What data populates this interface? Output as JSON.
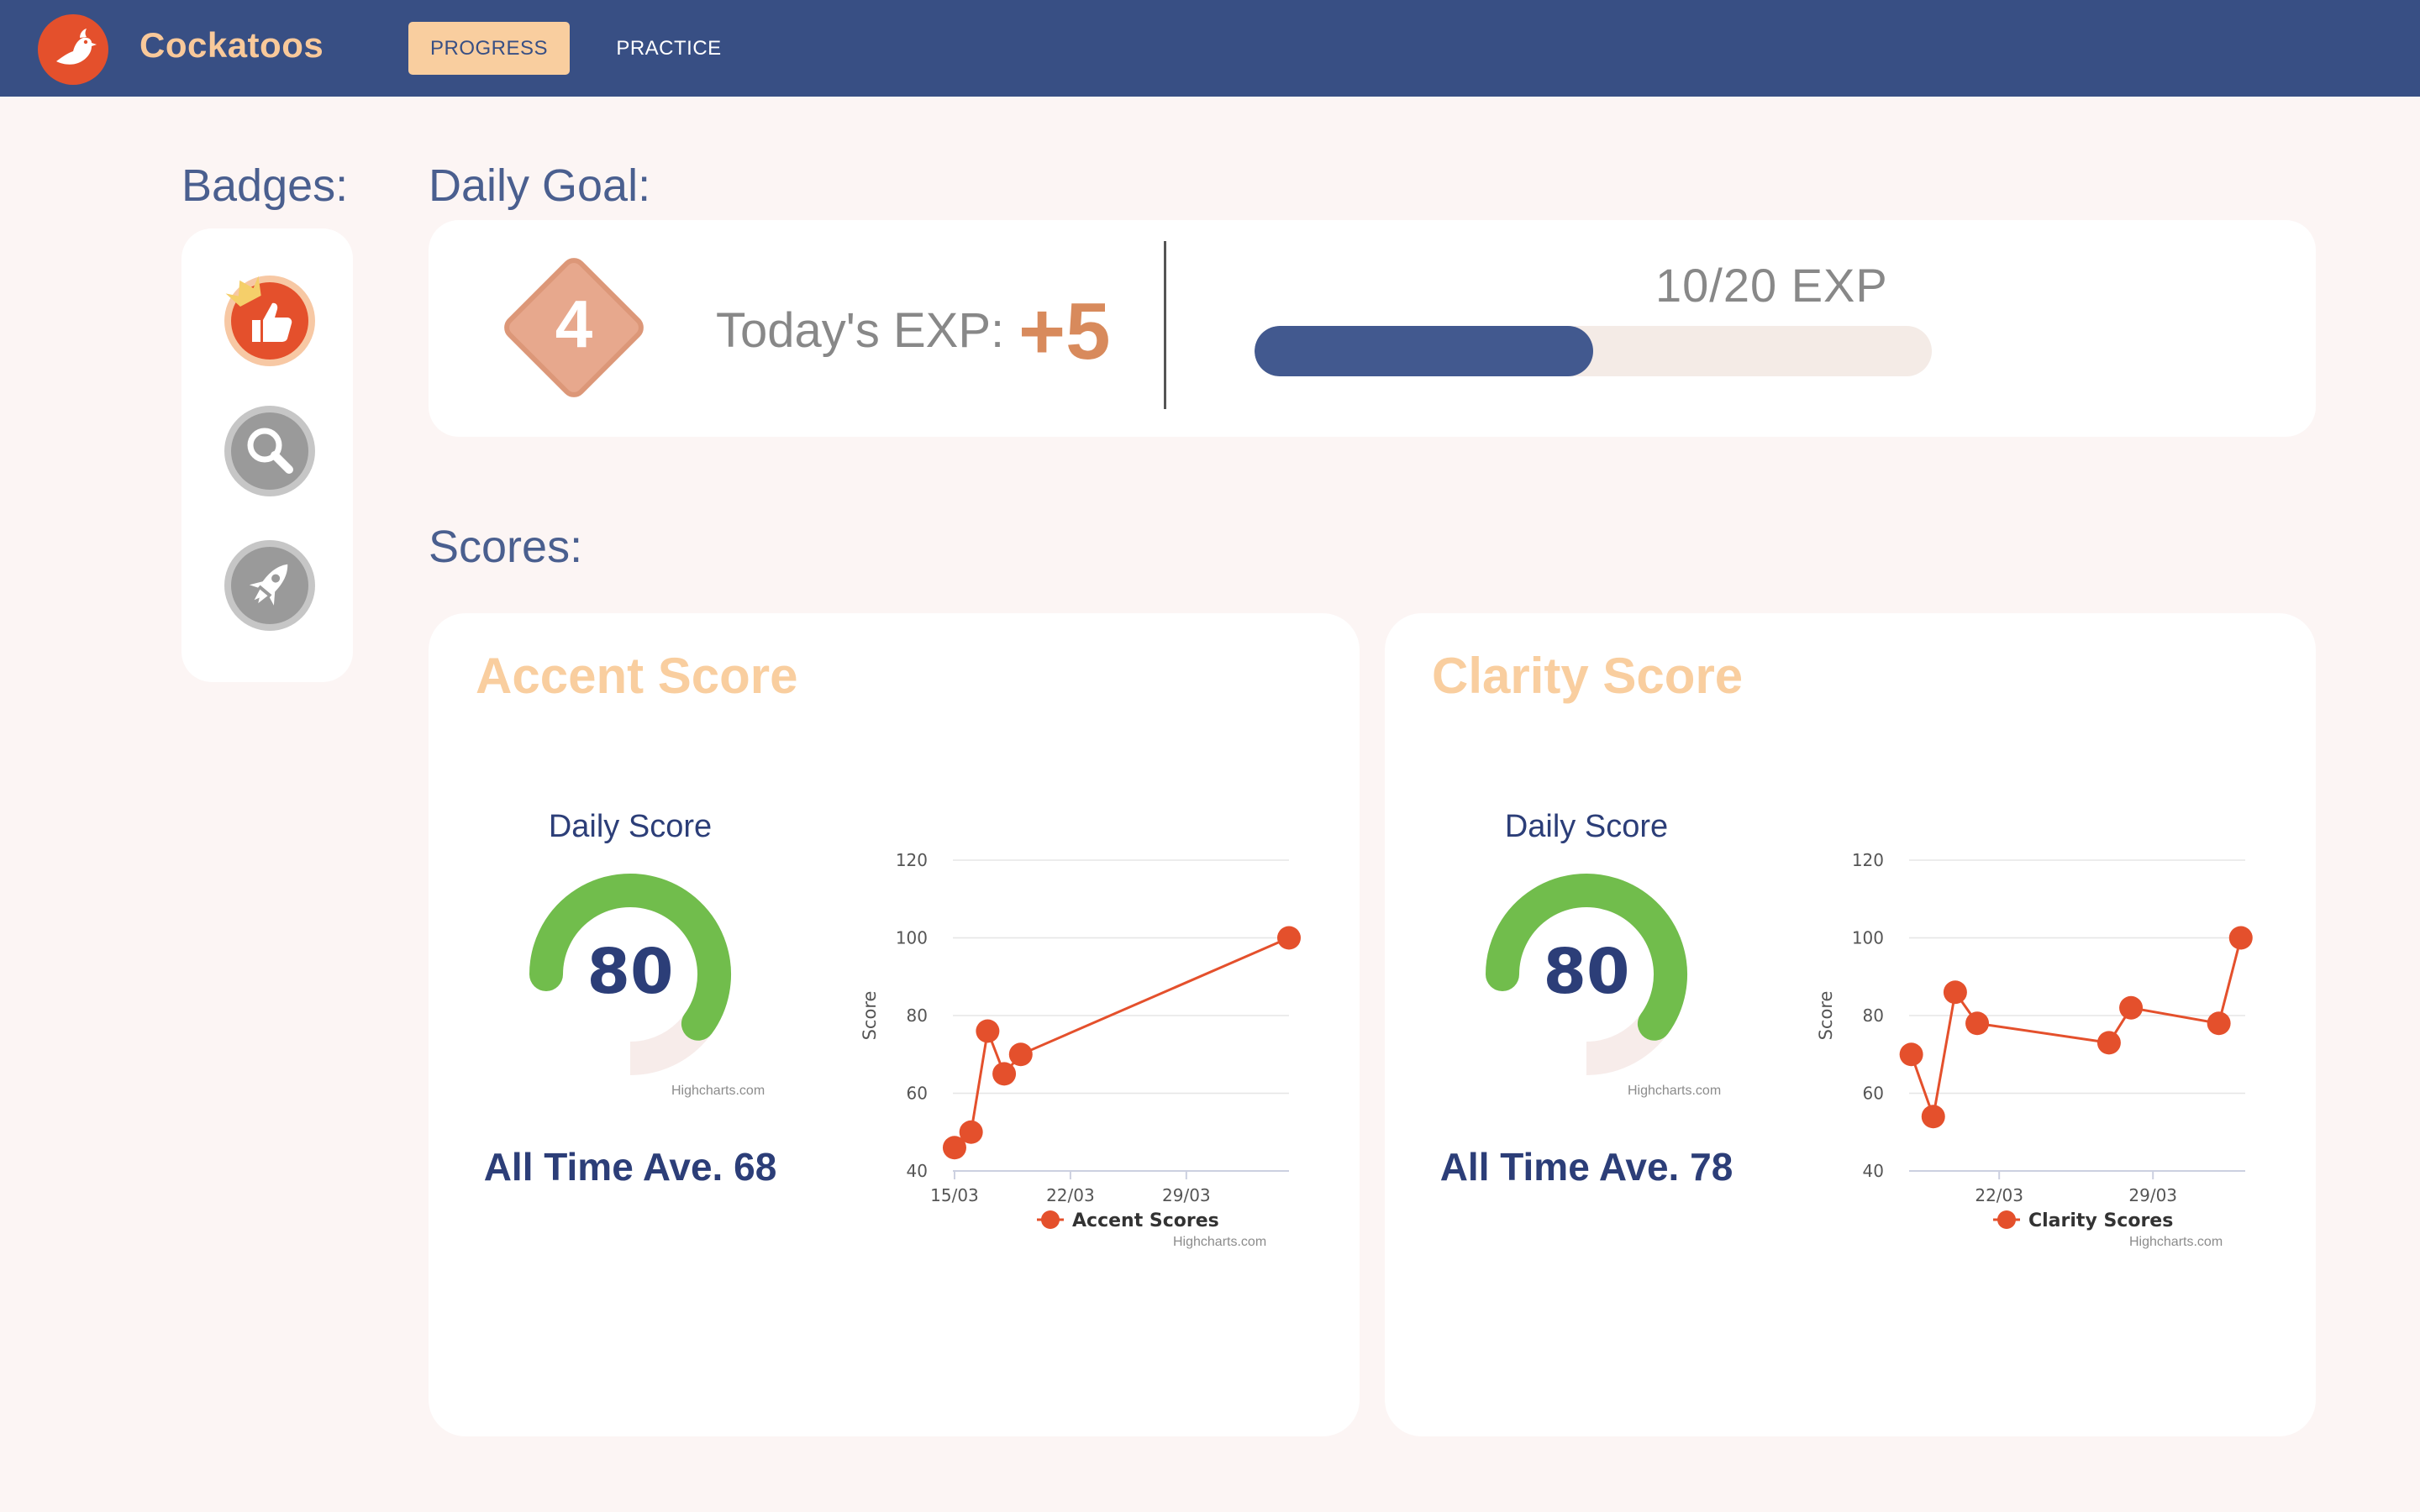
{
  "app": {
    "name": "Cockatoos",
    "logo_icon": "cockatoo-bird-icon",
    "brand_color": "#f9c99a",
    "header_color": "#384f84"
  },
  "nav": {
    "progress_label": "PROGRESS",
    "practice_label": "PRACTICE"
  },
  "badges": {
    "title": "Badges:",
    "items": [
      {
        "icon": "thumbs-up-icon",
        "earned": true,
        "crown": true
      },
      {
        "icon": "magnifier-icon",
        "earned": false
      },
      {
        "icon": "rocket-icon",
        "earned": false
      }
    ]
  },
  "daily_goal": {
    "title": "Daily Goal:",
    "level": "4",
    "today_label": "Today's EXP:",
    "today_value": "+5",
    "exp_text": "10/20 EXP",
    "exp_current": 10,
    "exp_target": 20
  },
  "scores": {
    "title": "Scores:",
    "accent": {
      "title": "Accent Score",
      "daily_label": "Daily Score",
      "daily_value": "80",
      "gauge_fraction": 0.8,
      "gauge_credit": "Highcharts.com",
      "average_text": "All Time Ave. 68"
    },
    "clarity": {
      "title": "Clarity Score",
      "daily_label": "Daily Score",
      "daily_value": "80",
      "gauge_fraction": 0.8,
      "gauge_credit": "Highcharts.com",
      "average_text": "All Time Ave. 78"
    }
  },
  "chart_data": [
    {
      "type": "line",
      "id": "accent",
      "ylabel": "Score",
      "ylim": [
        40,
        120
      ],
      "yticks": [
        40,
        60,
        80,
        100,
        120
      ],
      "xlim": [
        14.9,
        35.2
      ],
      "xticks": [
        {
          "x": 15,
          "label": "15/03"
        },
        {
          "x": 22,
          "label": "22/03"
        },
        {
          "x": 29,
          "label": "29/03"
        }
      ],
      "grid": true,
      "legend": "bottom-center",
      "series": [
        {
          "name": "Accent Scores",
          "color": "#e4502c",
          "x": [
            15.0,
            16.0,
            17.0,
            18.0,
            19.0,
            35.2
          ],
          "y": [
            46,
            50,
            76,
            65,
            70,
            100
          ]
        }
      ],
      "credit": "Highcharts.com"
    },
    {
      "type": "line",
      "id": "clarity",
      "ylabel": "Score",
      "ylim": [
        40,
        120
      ],
      "yticks": [
        40,
        60,
        80,
        100,
        120
      ],
      "xlim": [
        17.9,
        33.2
      ],
      "xticks": [
        {
          "x": 22,
          "label": "22/03"
        },
        {
          "x": 29,
          "label": "29/03"
        }
      ],
      "grid": true,
      "legend": "bottom-center",
      "series": [
        {
          "name": "Clarity Scores",
          "color": "#e4502c",
          "x": [
            18.0,
            19.0,
            20.0,
            21.0,
            27.0,
            28.0,
            32.0,
            33.0
          ],
          "y": [
            70,
            54,
            86,
            78,
            73,
            82,
            78,
            100
          ]
        }
      ],
      "credit": "Highcharts.com"
    }
  ]
}
